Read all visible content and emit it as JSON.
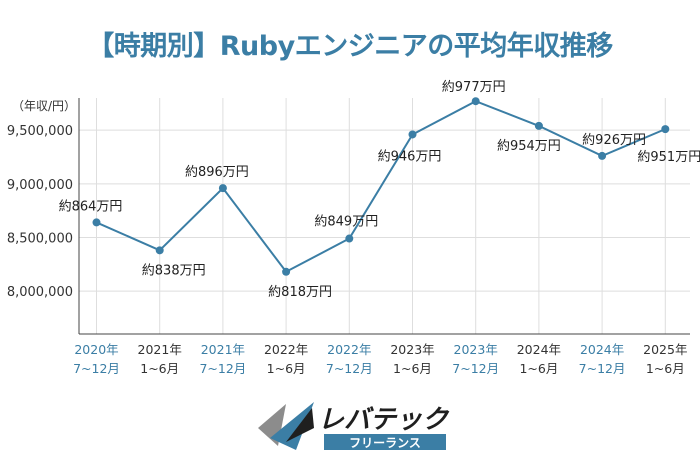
{
  "title": "【時期別】Rubyエンジニアの平均年収推移",
  "brand": {
    "name": "レバテック",
    "sub": "フリーランス"
  },
  "colors": {
    "accent": "#3b7ea5",
    "line": "#3b7ea5",
    "grid": "#dedede",
    "axis_text": "#333333",
    "x_alt_label": "#3b7ea5",
    "logo_dark": "#1f1f1f",
    "logo_grey": "#8c8c8c"
  },
  "chart_data": {
    "type": "line",
    "ylabel": "（年収/円）",
    "ylim": [
      7600000,
      9800000
    ],
    "yticks": [
      8000000,
      8500000,
      9000000,
      9500000
    ],
    "ytick_labels": [
      "8,000,000",
      "8,500,000",
      "9,000,000",
      "9,500,000"
    ],
    "grid": true,
    "categories": [
      {
        "year": "2020年",
        "period": "7~12月",
        "highlight": true
      },
      {
        "year": "2021年",
        "period": "1~6月",
        "highlight": false
      },
      {
        "year": "2021年",
        "period": "7~12月",
        "highlight": true
      },
      {
        "year": "2022年",
        "period": "1~6月",
        "highlight": false
      },
      {
        "year": "2022年",
        "period": "7~12月",
        "highlight": true
      },
      {
        "year": "2023年",
        "period": "1~6月",
        "highlight": false
      },
      {
        "year": "2023年",
        "period": "7~12月",
        "highlight": true
      },
      {
        "year": "2024年",
        "period": "1~6月",
        "highlight": false
      },
      {
        "year": "2024年",
        "period": "7~12月",
        "highlight": true
      },
      {
        "year": "2025年",
        "period": "1~6月",
        "highlight": false
      }
    ],
    "series": [
      {
        "values": [
          8640000,
          8380000,
          8960000,
          8180000,
          8490000,
          9460000,
          9770000,
          9540000,
          9260000,
          9510000
        ],
        "labels": [
          "約864万円",
          "約838万円",
          "約896万円",
          "約818万円",
          "約849万円",
          "約946万円",
          "約977万円",
          "約954万円",
          "約926万円",
          "約951万円"
        ]
      }
    ]
  }
}
